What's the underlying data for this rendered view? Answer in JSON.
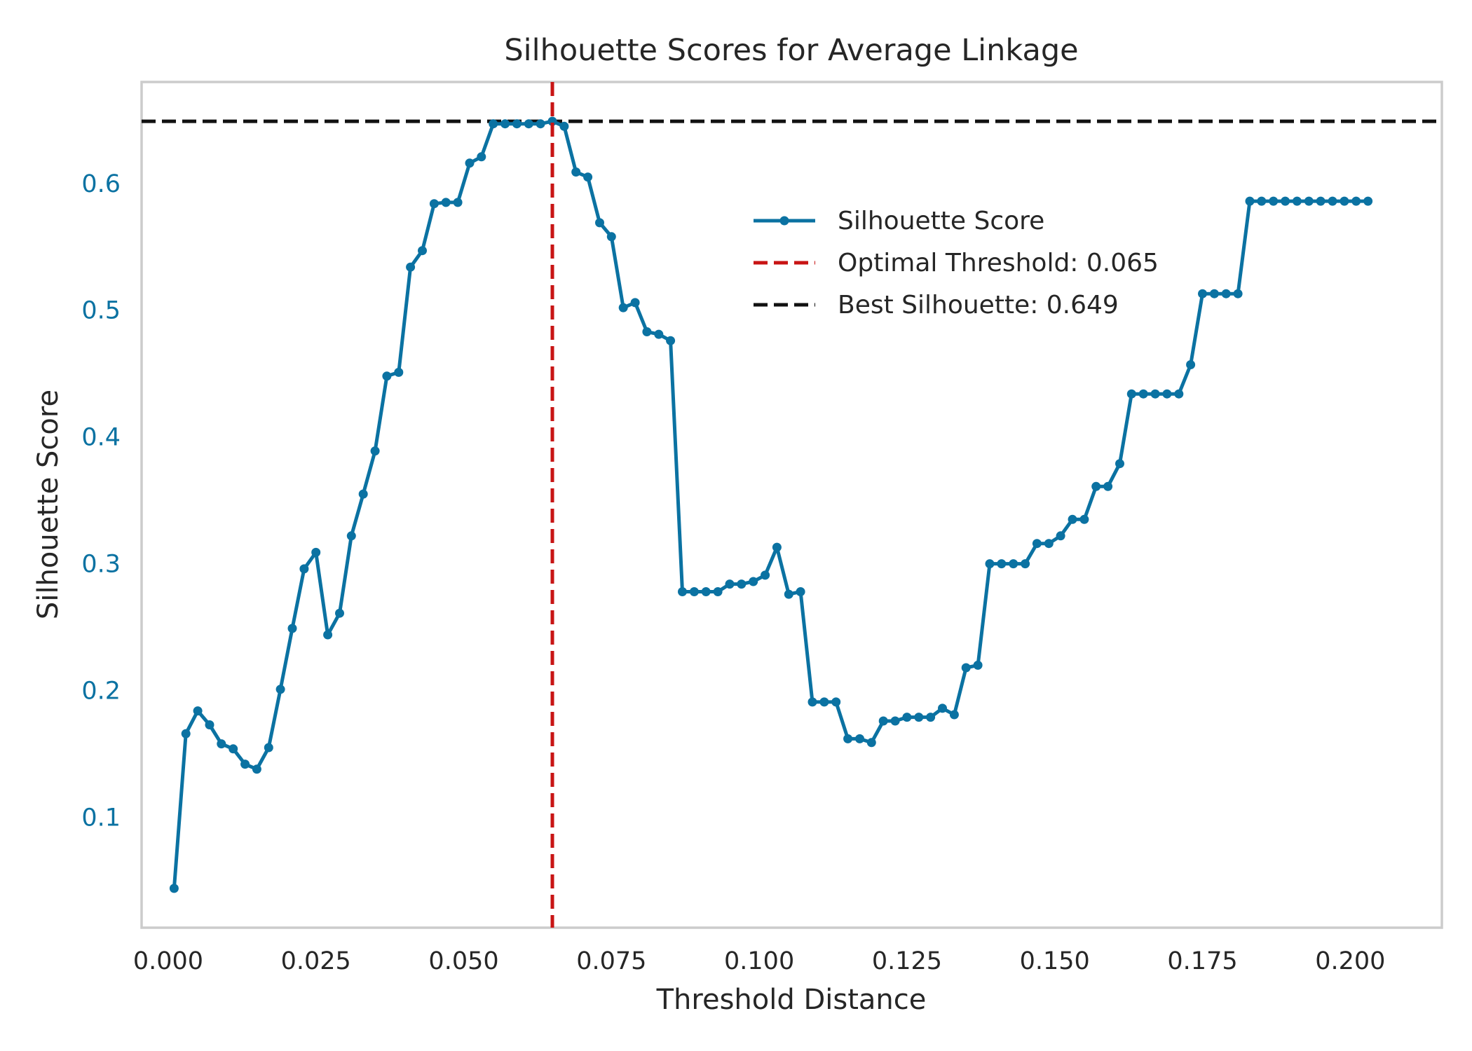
{
  "colors": {
    "series": "#0b72a2",
    "optimal_line": "#c81414",
    "best_line": "#111111",
    "frame": "#cccccc",
    "text": "#262626",
    "ylabel": "#0b72a2"
  },
  "chart_data": {
    "type": "line",
    "title": "Silhouette Scores for Average Linkage",
    "xlabel": "Threshold Distance",
    "ylabel": "Silhouette Score",
    "xlim": [
      -0.0045,
      0.2155
    ],
    "ylim": [
      0.013,
      0.68
    ],
    "xticks": [
      0.0,
      0.025,
      0.05,
      0.075,
      0.1,
      0.125,
      0.15,
      0.175,
      0.2
    ],
    "xtick_labels": [
      "0.000",
      "0.025",
      "0.050",
      "0.075",
      "0.100",
      "0.125",
      "0.150",
      "0.175",
      "0.200"
    ],
    "yticks": [
      0.1,
      0.2,
      0.3,
      0.4,
      0.5,
      0.6
    ],
    "ytick_labels": [
      "0.1",
      "0.2",
      "0.3",
      "0.4",
      "0.5",
      "0.6"
    ],
    "grid": false,
    "legend_position": "upper-right",
    "legend": [
      {
        "label": "Silhouette Score",
        "style": "line-marker"
      },
      {
        "label": "Optimal Threshold: 0.065",
        "style": "dashed-red"
      },
      {
        "label": "Best Silhouette: 0.649",
        "style": "dashed-black"
      }
    ],
    "vline": {
      "x": 0.065
    },
    "hline": {
      "y": 0.649
    },
    "series": [
      {
        "name": "Silhouette Score",
        "x": [
          0.001,
          0.003,
          0.005,
          0.007,
          0.009,
          0.011,
          0.013,
          0.015,
          0.017,
          0.019,
          0.021,
          0.023,
          0.025,
          0.027,
          0.029,
          0.031,
          0.033,
          0.035,
          0.037,
          0.039,
          0.041,
          0.043,
          0.045,
          0.047,
          0.049,
          0.051,
          0.053,
          0.055,
          0.057,
          0.059,
          0.061,
          0.063,
          0.065,
          0.067,
          0.069,
          0.071,
          0.073,
          0.075,
          0.077,
          0.079,
          0.081,
          0.083,
          0.085,
          0.087,
          0.089,
          0.091,
          0.093,
          0.095,
          0.097,
          0.099,
          0.101,
          0.103,
          0.105,
          0.107,
          0.109,
          0.111,
          0.113,
          0.115,
          0.117,
          0.119,
          0.121,
          0.123,
          0.125,
          0.127,
          0.129,
          0.131,
          0.133,
          0.135,
          0.137,
          0.139,
          0.141,
          0.143,
          0.145,
          0.147,
          0.149,
          0.151,
          0.153,
          0.155,
          0.157,
          0.159,
          0.161,
          0.163,
          0.165,
          0.167,
          0.169,
          0.171,
          0.173,
          0.175,
          0.177,
          0.179,
          0.181,
          0.183,
          0.185,
          0.187,
          0.189,
          0.191,
          0.193,
          0.195,
          0.197,
          0.199,
          0.201,
          0.203
        ],
        "values": [
          0.044,
          0.166,
          0.184,
          0.173,
          0.158,
          0.154,
          0.142,
          0.138,
          0.155,
          0.201,
          0.249,
          0.296,
          0.309,
          0.244,
          0.261,
          0.322,
          0.355,
          0.389,
          0.448,
          0.451,
          0.534,
          0.547,
          0.584,
          0.585,
          0.585,
          0.616,
          0.621,
          0.647,
          0.647,
          0.647,
          0.647,
          0.647,
          0.649,
          0.645,
          0.609,
          0.605,
          0.569,
          0.558,
          0.502,
          0.506,
          0.483,
          0.481,
          0.476,
          0.278,
          0.278,
          0.278,
          0.278,
          0.284,
          0.284,
          0.286,
          0.291,
          0.313,
          0.276,
          0.278,
          0.191,
          0.191,
          0.191,
          0.162,
          0.162,
          0.159,
          0.176,
          0.176,
          0.179,
          0.179,
          0.179,
          0.186,
          0.181,
          0.218,
          0.22,
          0.3,
          0.3,
          0.3,
          0.3,
          0.316,
          0.316,
          0.322,
          0.335,
          0.335,
          0.361,
          0.361,
          0.379,
          0.434,
          0.434,
          0.434,
          0.434,
          0.434,
          0.457,
          0.513,
          0.513,
          0.513,
          0.513,
          0.586,
          0.586,
          0.586,
          0.586,
          0.586,
          0.586,
          0.586,
          0.586,
          0.586,
          0.586,
          0.586
        ]
      }
    ]
  }
}
